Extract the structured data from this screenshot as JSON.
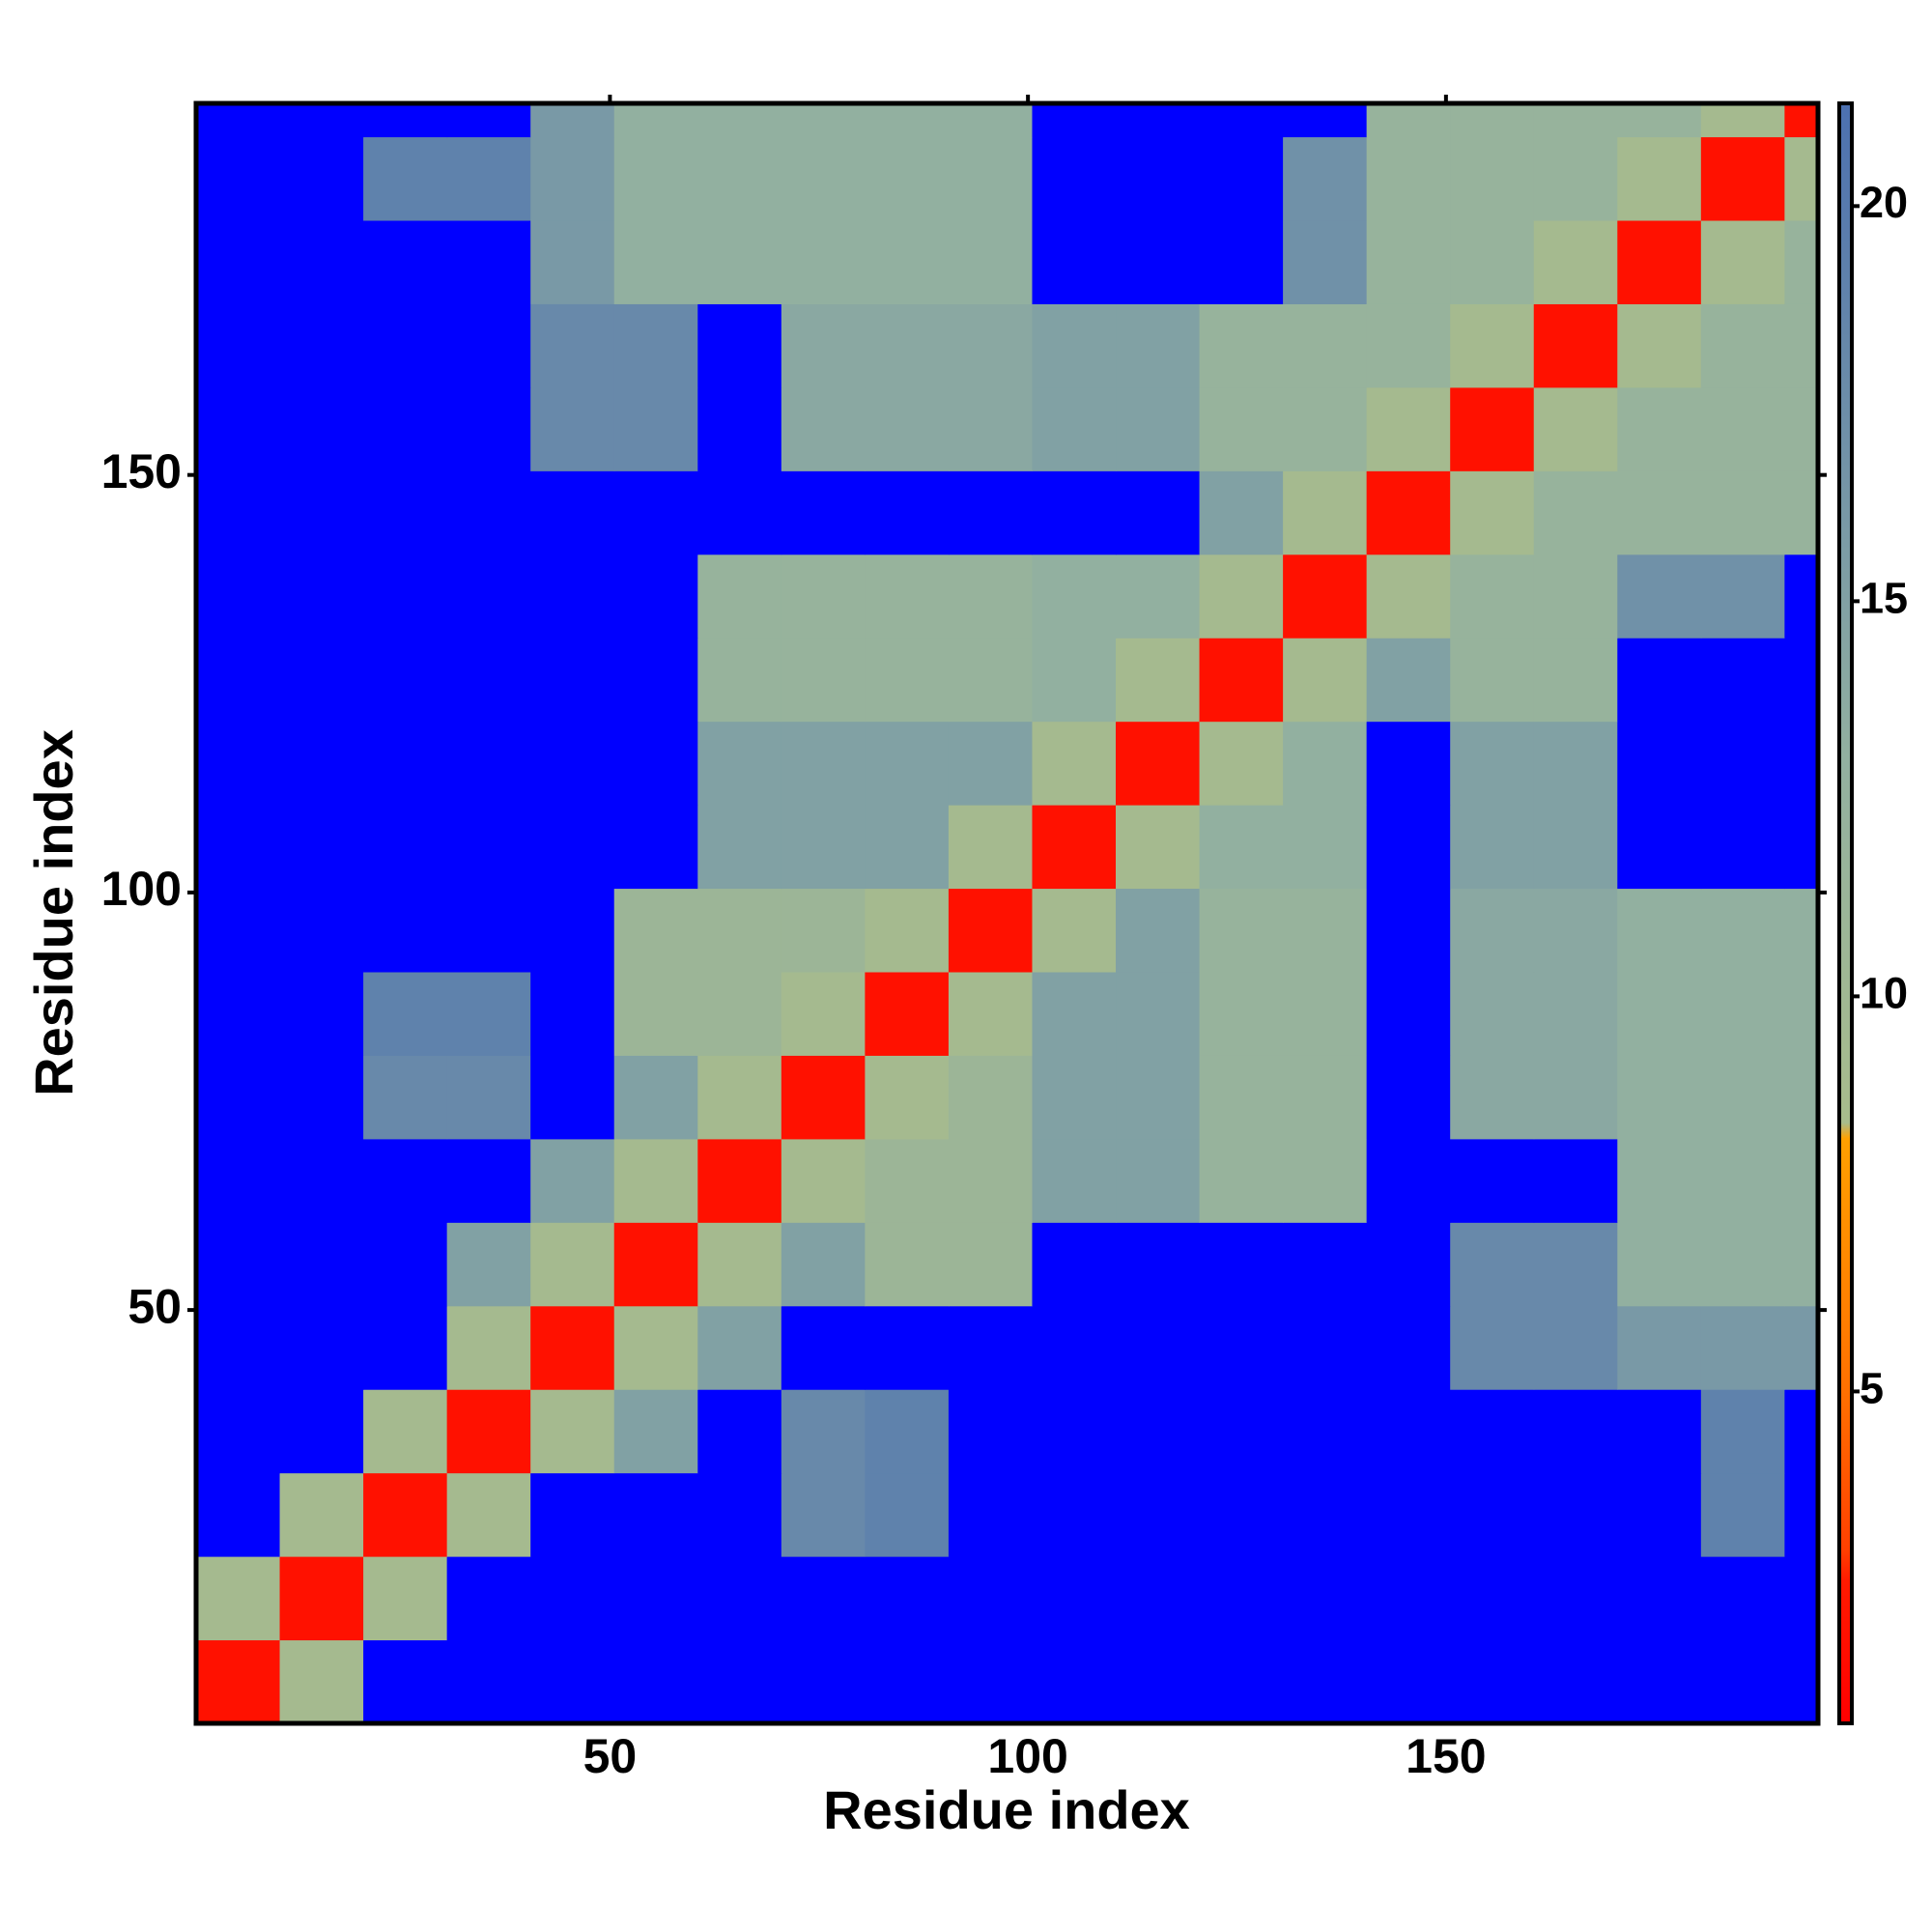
{
  "chart_data": {
    "type": "heatmap",
    "x_label": "Residue index",
    "y_label": "Residue index",
    "x_edges": [
      0.5,
      10.5,
      20.5,
      30.5,
      40.5,
      50.5,
      60.5,
      70.5,
      80.5,
      90.5,
      100.5,
      110.5,
      120.5,
      130.5,
      140.5,
      150.5,
      160.5,
      170.5,
      180.5,
      190.5,
      194.5
    ],
    "y_edges": [
      0.5,
      10.5,
      20.5,
      30.5,
      40.5,
      50.5,
      60.5,
      70.5,
      80.5,
      90.5,
      100.5,
      110.5,
      120.5,
      130.5,
      140.5,
      150.5,
      160.5,
      170.5,
      180.5,
      190.5,
      194.5
    ],
    "z": [
      [
        2,
        9,
        25,
        25,
        25,
        25,
        25,
        25,
        25,
        25,
        25,
        25,
        25,
        25,
        25,
        25,
        25,
        25,
        25,
        25
      ],
      [
        9,
        2,
        9,
        25,
        25,
        25,
        25,
        25,
        25,
        25,
        25,
        25,
        25,
        25,
        25,
        25,
        25,
        25,
        25,
        25
      ],
      [
        25,
        9,
        2,
        9,
        25,
        25,
        25,
        18,
        19,
        25,
        25,
        25,
        25,
        25,
        25,
        25,
        25,
        25,
        19,
        25
      ],
      [
        25,
        25,
        9,
        2,
        9,
        15,
        25,
        18,
        19,
        25,
        25,
        25,
        25,
        25,
        25,
        25,
        25,
        25,
        19,
        25
      ],
      [
        25,
        25,
        25,
        9,
        2,
        9,
        15,
        25,
        25,
        25,
        25,
        25,
        25,
        25,
        25,
        18,
        18,
        16,
        16,
        16
      ],
      [
        25,
        25,
        25,
        15,
        9,
        2,
        9,
        15,
        11,
        11,
        25,
        25,
        25,
        25,
        25,
        18,
        18,
        13,
        13,
        13
      ],
      [
        25,
        25,
        25,
        25,
        15,
        9,
        2,
        9,
        11,
        11,
        15,
        15,
        12,
        12,
        25,
        25,
        25,
        13,
        13,
        13
      ],
      [
        25,
        25,
        18,
        18,
        25,
        15,
        9,
        2,
        9,
        11,
        15,
        15,
        12,
        12,
        25,
        14,
        14,
        13,
        13,
        13
      ],
      [
        25,
        25,
        19,
        19,
        25,
        11,
        11,
        9,
        2,
        9,
        15,
        15,
        12,
        12,
        25,
        14,
        14,
        13,
        13,
        13
      ],
      [
        25,
        25,
        25,
        25,
        25,
        11,
        11,
        11,
        9,
        2,
        9,
        15,
        12,
        12,
        25,
        14,
        14,
        13,
        13,
        13
      ],
      [
        25,
        25,
        25,
        25,
        25,
        25,
        15,
        15,
        15,
        9,
        2,
        9,
        13,
        13,
        25,
        15,
        15,
        25,
        25,
        25
      ],
      [
        25,
        25,
        25,
        25,
        25,
        25,
        15,
        15,
        15,
        15,
        9,
        2,
        9,
        13,
        25,
        15,
        15,
        25,
        25,
        25
      ],
      [
        25,
        25,
        25,
        25,
        25,
        25,
        12,
        12,
        12,
        12,
        13,
        9,
        2,
        9,
        15,
        12,
        12,
        25,
        25,
        25
      ],
      [
        25,
        25,
        25,
        25,
        25,
        25,
        12,
        12,
        12,
        12,
        13,
        13,
        9,
        2,
        9,
        12,
        12,
        17,
        17,
        25
      ],
      [
        25,
        25,
        25,
        25,
        25,
        25,
        25,
        25,
        25,
        25,
        25,
        25,
        15,
        9,
        2,
        9,
        12,
        12,
        12,
        12
      ],
      [
        25,
        25,
        25,
        25,
        18,
        18,
        25,
        14,
        14,
        14,
        15,
        15,
        12,
        12,
        9,
        2,
        9,
        12,
        12,
        12
      ],
      [
        25,
        25,
        25,
        25,
        18,
        18,
        25,
        14,
        14,
        14,
        15,
        15,
        12,
        12,
        12,
        9,
        2,
        9,
        12,
        12
      ],
      [
        25,
        25,
        25,
        25,
        16,
        13,
        13,
        13,
        13,
        13,
        25,
        25,
        25,
        17,
        12,
        12,
        9,
        2,
        9,
        12
      ],
      [
        25,
        25,
        19,
        19,
        16,
        13,
        13,
        13,
        13,
        13,
        25,
        25,
        25,
        17,
        12,
        12,
        12,
        9,
        2,
        9
      ],
      [
        25,
        25,
        25,
        25,
        16,
        13,
        13,
        13,
        13,
        13,
        25,
        25,
        25,
        25,
        12,
        12,
        12,
        12,
        9,
        2
      ]
    ],
    "xlim": [
      0.5,
      194.5
    ],
    "ylim": [
      0.5,
      194.5
    ],
    "xticks": [
      50,
      100,
      150
    ],
    "yticks": [
      50,
      100,
      150
    ],
    "colorbar": {
      "lim": [
        0.8,
        21.3
      ],
      "ticks": [
        5,
        10,
        15,
        20
      ],
      "stops": [
        {
          "value": 0.8,
          "color": "#ff0000"
        },
        {
          "value": 2.6,
          "color": "#ff1a00"
        },
        {
          "value": 3.0,
          "color": "#ff4000"
        },
        {
          "value": 5,
          "color": "#ff7000"
        },
        {
          "value": 8.2,
          "color": "#ffa000"
        },
        {
          "value": 8.4,
          "color": "#a8bc8c"
        },
        {
          "value": 13,
          "color": "#92b0a0"
        },
        {
          "value": 21.3,
          "color": "#4c70b0"
        }
      ],
      "over_color": "#0000ff"
    }
  }
}
